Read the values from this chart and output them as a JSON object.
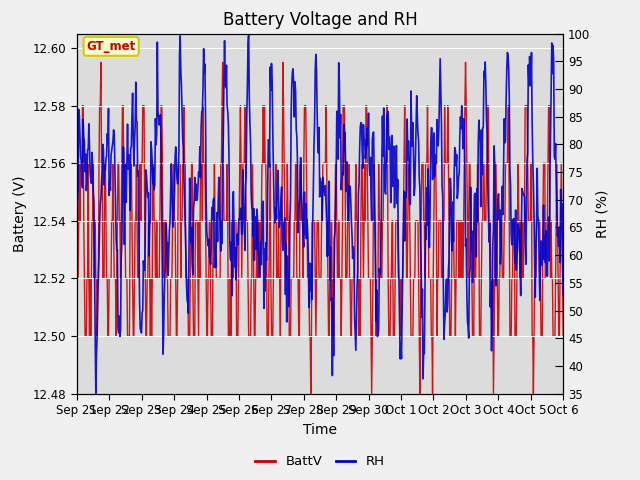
{
  "title": "Battery Voltage and RH",
  "xlabel": "Time",
  "ylabel_left": "Battery (V)",
  "ylabel_right": "RH (%)",
  "annotation": "GT_met",
  "ylim_left": [
    12.48,
    12.605
  ],
  "ylim_right": [
    35,
    100
  ],
  "yticks_left": [
    12.48,
    12.5,
    12.52,
    12.54,
    12.56,
    12.58,
    12.6
  ],
  "yticks_right": [
    35,
    40,
    45,
    50,
    55,
    60,
    65,
    70,
    75,
    80,
    85,
    90,
    95,
    100
  ],
  "xtick_labels": [
    "Sep 21",
    "Sep 22",
    "Sep 23",
    "Sep 24",
    "Sep 25",
    "Sep 26",
    "Sep 27",
    "Sep 28",
    "Sep 29",
    "Sep 30",
    "Oct 1",
    "Oct 2",
    "Oct 3",
    "Oct 4",
    "Oct 5",
    "Oct 6"
  ],
  "color_battv": "#cc0000",
  "color_rh": "#0000cc",
  "legend_labels": [
    "BattV",
    "RH"
  ],
  "background_color": "#dcdcdc",
  "fig_background": "#f0f0f0",
  "title_fontsize": 12,
  "label_fontsize": 10,
  "tick_fontsize": 8.5
}
